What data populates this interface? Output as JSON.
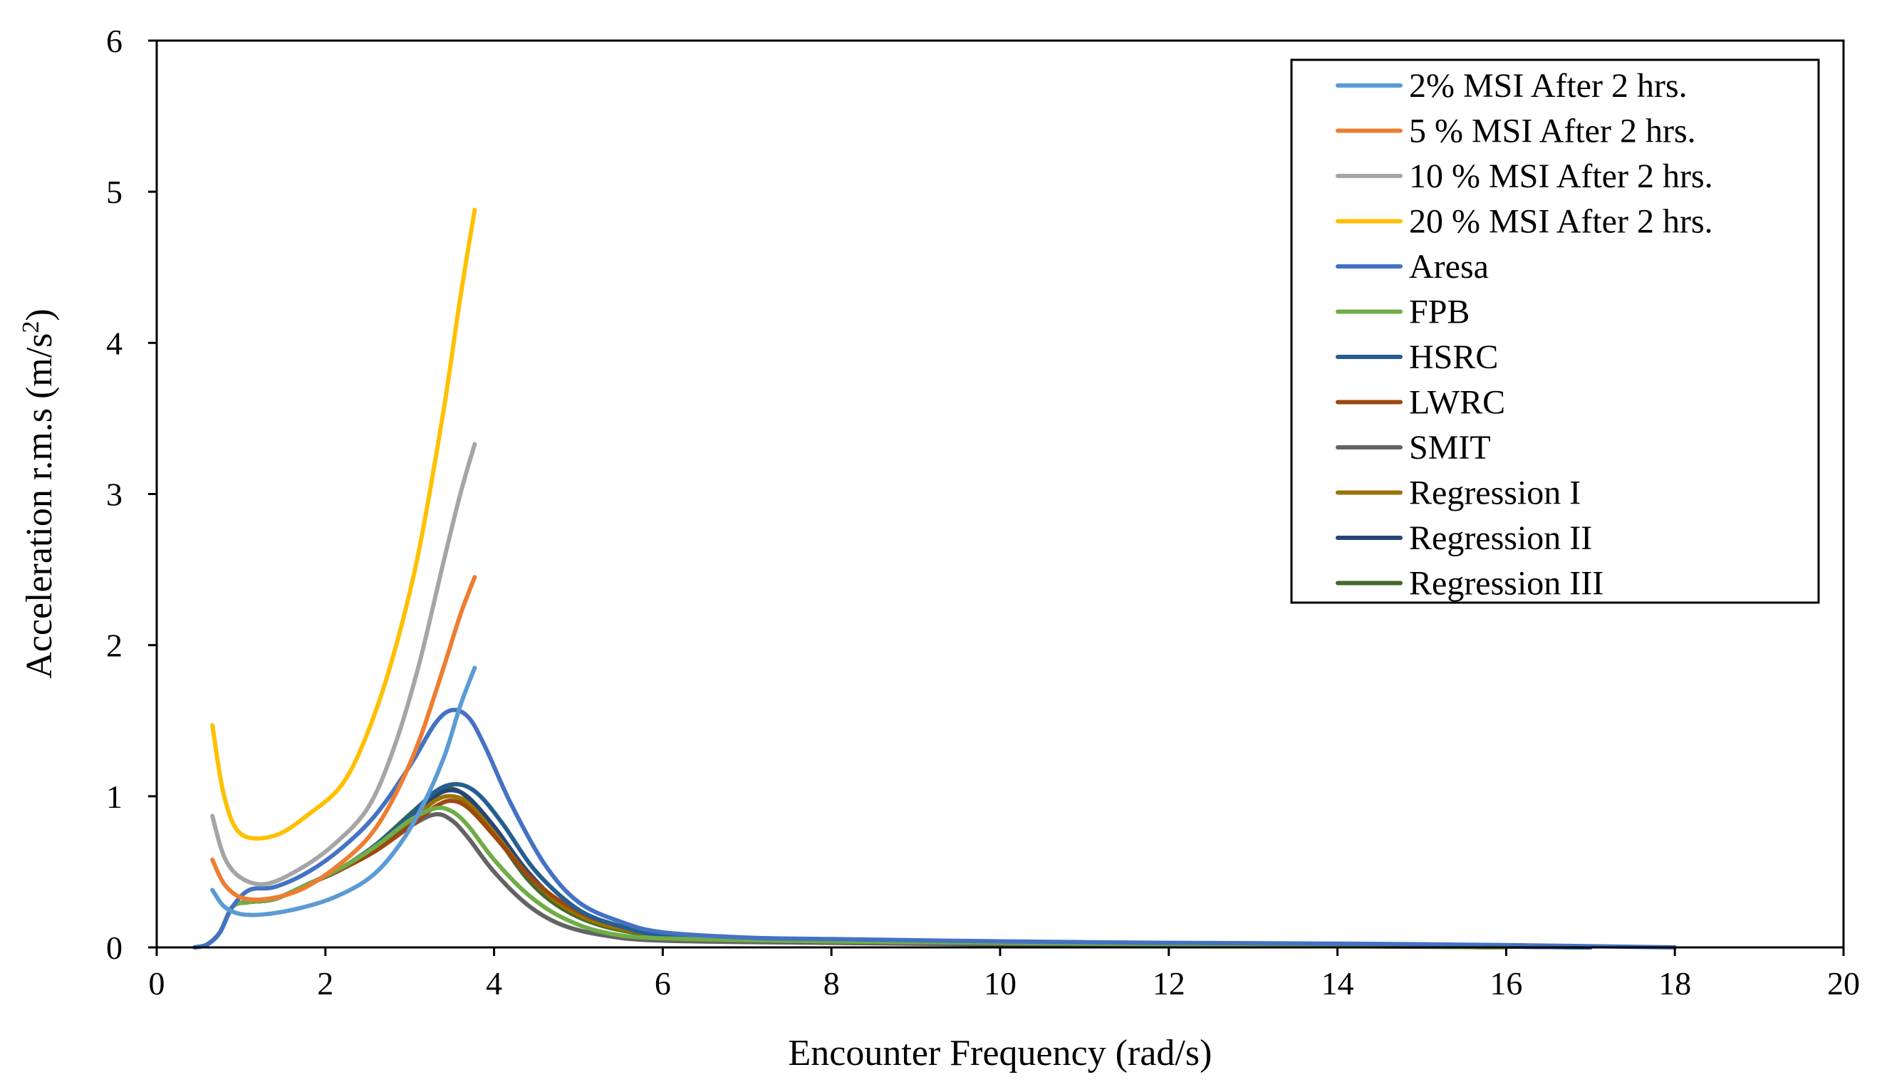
{
  "chart_data": {
    "type": "line",
    "title": "",
    "xlabel": "Encounter Frequency (rad/s)",
    "ylabel_prefix": "Acceleration r.m.s (m/s",
    "ylabel_sup": "2",
    "ylabel_suffix": ")",
    "xlim": [
      0,
      20
    ],
    "ylim": [
      0,
      6
    ],
    "x_ticks": [
      "0",
      "2",
      "4",
      "6",
      "8",
      "10",
      "12",
      "14",
      "16",
      "18",
      "20"
    ],
    "y_ticks": [
      "0",
      "1",
      "2",
      "3",
      "4",
      "5",
      "6"
    ],
    "grid": false,
    "legend_position": "top-right",
    "series": [
      {
        "name": "2% MSI After 2 hrs.",
        "color": "#5B9BD5",
        "points": [
          [
            0.66,
            0.38
          ],
          [
            0.8,
            0.27
          ],
          [
            1.0,
            0.22
          ],
          [
            1.3,
            0.22
          ],
          [
            1.7,
            0.26
          ],
          [
            2.1,
            0.33
          ],
          [
            2.5,
            0.45
          ],
          [
            2.8,
            0.62
          ],
          [
            3.1,
            0.88
          ],
          [
            3.4,
            1.25
          ],
          [
            3.6,
            1.6
          ],
          [
            3.77,
            1.85
          ]
        ]
      },
      {
        "name": "5 % MSI After 2 hrs.",
        "color": "#ED7D31",
        "points": [
          [
            0.66,
            0.58
          ],
          [
            0.8,
            0.42
          ],
          [
            1.0,
            0.33
          ],
          [
            1.3,
            0.32
          ],
          [
            1.7,
            0.38
          ],
          [
            2.1,
            0.52
          ],
          [
            2.5,
            0.72
          ],
          [
            2.8,
            0.98
          ],
          [
            3.1,
            1.35
          ],
          [
            3.4,
            1.85
          ],
          [
            3.6,
            2.2
          ],
          [
            3.77,
            2.45
          ]
        ]
      },
      {
        "name": "10 % MSI After 2 hrs.",
        "color": "#A5A5A5",
        "points": [
          [
            0.66,
            0.87
          ],
          [
            0.8,
            0.6
          ],
          [
            1.0,
            0.46
          ],
          [
            1.3,
            0.42
          ],
          [
            1.7,
            0.52
          ],
          [
            2.1,
            0.68
          ],
          [
            2.5,
            0.92
          ],
          [
            2.8,
            1.3
          ],
          [
            3.1,
            1.85
          ],
          [
            3.4,
            2.55
          ],
          [
            3.6,
            3.0
          ],
          [
            3.77,
            3.33
          ]
        ]
      },
      {
        "name": "20 % MSI After 2 hrs.",
        "color": "#FFC000",
        "points": [
          [
            0.66,
            1.47
          ],
          [
            0.8,
            1.0
          ],
          [
            1.0,
            0.75
          ],
          [
            1.4,
            0.74
          ],
          [
            1.8,
            0.88
          ],
          [
            2.2,
            1.08
          ],
          [
            2.5,
            1.42
          ],
          [
            2.8,
            1.92
          ],
          [
            3.1,
            2.6
          ],
          [
            3.4,
            3.55
          ],
          [
            3.6,
            4.3
          ],
          [
            3.77,
            4.88
          ]
        ]
      },
      {
        "name": "Aresa",
        "color": "#4472C4",
        "points": [
          [
            0.45,
            0.0
          ],
          [
            0.6,
            0.02
          ],
          [
            0.75,
            0.1
          ],
          [
            0.9,
            0.27
          ],
          [
            1.1,
            0.38
          ],
          [
            1.4,
            0.4
          ],
          [
            1.8,
            0.5
          ],
          [
            2.2,
            0.66
          ],
          [
            2.6,
            0.88
          ],
          [
            3.0,
            1.2
          ],
          [
            3.3,
            1.48
          ],
          [
            3.5,
            1.57
          ],
          [
            3.7,
            1.52
          ],
          [
            3.9,
            1.32
          ],
          [
            4.2,
            0.95
          ],
          [
            4.6,
            0.55
          ],
          [
            5.0,
            0.3
          ],
          [
            5.5,
            0.17
          ],
          [
            6.0,
            0.1
          ],
          [
            7.0,
            0.065
          ],
          [
            8.0,
            0.055
          ],
          [
            10.0,
            0.04
          ],
          [
            12.0,
            0.03
          ],
          [
            14.0,
            0.025
          ],
          [
            16.0,
            0.015
          ],
          [
            18.0,
            0.0
          ]
        ]
      },
      {
        "name": "FPB",
        "color": "#70AD47",
        "points": [
          [
            0.45,
            0.0
          ],
          [
            0.6,
            0.02
          ],
          [
            0.75,
            0.1
          ],
          [
            0.9,
            0.27
          ],
          [
            1.1,
            0.3
          ],
          [
            1.4,
            0.32
          ],
          [
            1.8,
            0.42
          ],
          [
            2.2,
            0.53
          ],
          [
            2.6,
            0.67
          ],
          [
            3.0,
            0.84
          ],
          [
            3.3,
            0.92
          ],
          [
            3.5,
            0.9
          ],
          [
            3.7,
            0.8
          ],
          [
            4.0,
            0.58
          ],
          [
            4.4,
            0.35
          ],
          [
            4.8,
            0.2
          ],
          [
            5.3,
            0.1
          ],
          [
            6.0,
            0.06
          ],
          [
            8.0,
            0.04
          ],
          [
            10.0,
            0.03
          ],
          [
            12.0,
            0.02
          ],
          [
            14.0,
            0.012
          ],
          [
            16.0,
            0.0
          ]
        ]
      },
      {
        "name": "HSRC",
        "color": "#255E91",
        "points": [
          [
            0.45,
            0.0
          ],
          [
            0.6,
            0.02
          ],
          [
            0.75,
            0.1
          ],
          [
            0.9,
            0.27
          ],
          [
            1.1,
            0.3
          ],
          [
            1.4,
            0.32
          ],
          [
            1.8,
            0.42
          ],
          [
            2.2,
            0.53
          ],
          [
            2.6,
            0.68
          ],
          [
            3.0,
            0.87
          ],
          [
            3.3,
            1.03
          ],
          [
            3.55,
            1.08
          ],
          [
            3.8,
            1.02
          ],
          [
            4.1,
            0.82
          ],
          [
            4.5,
            0.5
          ],
          [
            5.0,
            0.25
          ],
          [
            5.5,
            0.14
          ],
          [
            6.0,
            0.08
          ],
          [
            7.0,
            0.055
          ],
          [
            8.0,
            0.045
          ],
          [
            10.0,
            0.035
          ],
          [
            12.0,
            0.025
          ],
          [
            14.0,
            0.015
          ],
          [
            17.0,
            0.0
          ]
        ]
      },
      {
        "name": "LWRC",
        "color": "#9E480E",
        "points": [
          [
            0.45,
            0.0
          ],
          [
            0.6,
            0.02
          ],
          [
            0.75,
            0.1
          ],
          [
            0.9,
            0.27
          ],
          [
            1.1,
            0.3
          ],
          [
            1.4,
            0.32
          ],
          [
            1.8,
            0.42
          ],
          [
            2.2,
            0.52
          ],
          [
            2.6,
            0.64
          ],
          [
            3.0,
            0.8
          ],
          [
            3.3,
            0.93
          ],
          [
            3.5,
            0.97
          ],
          [
            3.7,
            0.92
          ],
          [
            4.0,
            0.74
          ],
          [
            4.4,
            0.48
          ],
          [
            4.8,
            0.3
          ],
          [
            5.3,
            0.17
          ],
          [
            6.0,
            0.09
          ],
          [
            7.0,
            0.06
          ],
          [
            8.0,
            0.05
          ],
          [
            10.0,
            0.035
          ],
          [
            12.0,
            0.025
          ],
          [
            14.0,
            0.015
          ],
          [
            16.0,
            0.0
          ]
        ]
      },
      {
        "name": "SMIT",
        "color": "#636363",
        "points": [
          [
            0.45,
            0.0
          ],
          [
            0.6,
            0.02
          ],
          [
            0.75,
            0.1
          ],
          [
            0.9,
            0.27
          ],
          [
            1.1,
            0.3
          ],
          [
            1.4,
            0.32
          ],
          [
            1.8,
            0.42
          ],
          [
            2.2,
            0.52
          ],
          [
            2.6,
            0.65
          ],
          [
            3.0,
            0.8
          ],
          [
            3.3,
            0.88
          ],
          [
            3.5,
            0.84
          ],
          [
            3.7,
            0.72
          ],
          [
            4.0,
            0.5
          ],
          [
            4.4,
            0.28
          ],
          [
            4.8,
            0.15
          ],
          [
            5.3,
            0.08
          ],
          [
            6.0,
            0.045
          ],
          [
            8.0,
            0.03
          ],
          [
            10.0,
            0.02
          ],
          [
            12.0,
            0.015
          ],
          [
            14.0,
            0.008
          ],
          [
            16.0,
            0.0
          ]
        ]
      },
      {
        "name": "Regression I",
        "color": "#997300",
        "points": [
          [
            0.45,
            0.0
          ],
          [
            0.6,
            0.02
          ],
          [
            0.75,
            0.1
          ],
          [
            0.9,
            0.27
          ],
          [
            1.1,
            0.3
          ],
          [
            1.4,
            0.32
          ],
          [
            1.8,
            0.42
          ],
          [
            2.2,
            0.52
          ],
          [
            2.6,
            0.66
          ],
          [
            3.0,
            0.83
          ],
          [
            3.3,
            0.97
          ],
          [
            3.5,
            1.0
          ],
          [
            3.7,
            0.95
          ],
          [
            4.0,
            0.76
          ],
          [
            4.4,
            0.48
          ],
          [
            4.8,
            0.28
          ],
          [
            5.3,
            0.15
          ],
          [
            6.0,
            0.08
          ],
          [
            7.0,
            0.055
          ],
          [
            8.0,
            0.045
          ],
          [
            10.0,
            0.035
          ],
          [
            12.0,
            0.025
          ],
          [
            14.0,
            0.015
          ],
          [
            16.0,
            0.0
          ]
        ]
      },
      {
        "name": "Regression II",
        "color": "#264478",
        "points": [
          [
            0.45,
            0.0
          ],
          [
            0.6,
            0.02
          ],
          [
            0.75,
            0.1
          ],
          [
            0.9,
            0.27
          ],
          [
            1.1,
            0.3
          ],
          [
            1.4,
            0.32
          ],
          [
            1.8,
            0.42
          ],
          [
            2.2,
            0.52
          ],
          [
            2.6,
            0.67
          ],
          [
            3.0,
            0.85
          ],
          [
            3.3,
            1.0
          ],
          [
            3.5,
            1.04
          ],
          [
            3.7,
            0.99
          ],
          [
            4.0,
            0.8
          ],
          [
            4.4,
            0.5
          ],
          [
            4.8,
            0.29
          ],
          [
            5.3,
            0.16
          ],
          [
            6.0,
            0.085
          ],
          [
            7.0,
            0.058
          ],
          [
            8.0,
            0.048
          ],
          [
            10.0,
            0.037
          ],
          [
            12.0,
            0.027
          ],
          [
            14.0,
            0.017
          ],
          [
            17.0,
            0.0
          ]
        ]
      },
      {
        "name": "Regression III",
        "color": "#43682B",
        "points": [
          [
            0.45,
            0.0
          ],
          [
            0.6,
            0.02
          ],
          [
            0.75,
            0.1
          ],
          [
            0.9,
            0.27
          ],
          [
            1.1,
            0.3
          ],
          [
            1.4,
            0.32
          ],
          [
            1.8,
            0.42
          ],
          [
            2.2,
            0.52
          ],
          [
            2.6,
            0.68
          ],
          [
            3.0,
            0.88
          ],
          [
            3.3,
            1.02
          ],
          [
            3.5,
            1.05
          ],
          [
            3.7,
            0.98
          ],
          [
            4.0,
            0.76
          ],
          [
            4.4,
            0.45
          ],
          [
            4.8,
            0.26
          ],
          [
            5.3,
            0.14
          ],
          [
            6.0,
            0.075
          ],
          [
            7.0,
            0.05
          ],
          [
            8.0,
            0.04
          ],
          [
            10.0,
            0.03
          ],
          [
            12.0,
            0.022
          ],
          [
            14.0,
            0.012
          ],
          [
            16.0,
            0.0
          ]
        ]
      }
    ]
  }
}
